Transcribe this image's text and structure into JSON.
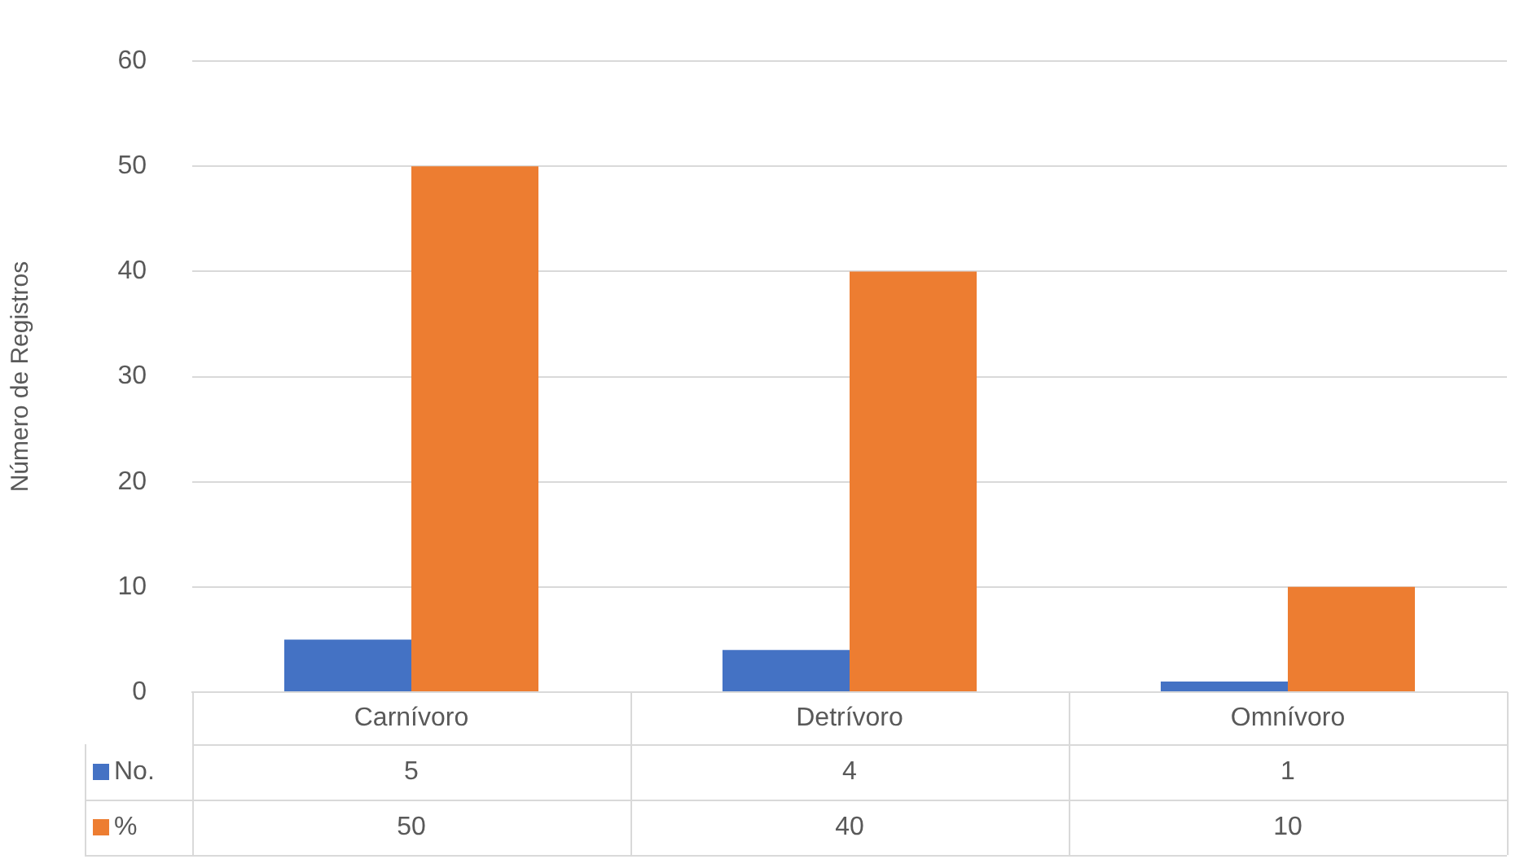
{
  "chart_data": {
    "type": "bar",
    "ylabel": "Número de Registros",
    "categories": [
      "Carnívoro",
      "Detrívoro",
      "Omnívoro"
    ],
    "series": [
      {
        "name": "No.",
        "color": "#4472c4",
        "values": [
          5,
          4,
          1
        ]
      },
      {
        "name": "%",
        "color": "#ed7d31",
        "values": [
          50,
          40,
          10
        ]
      }
    ],
    "ylim": [
      0,
      60
    ],
    "yticks": [
      0,
      10,
      20,
      30,
      40,
      50,
      60
    ],
    "grid": "y",
    "data_labels": true,
    "legend": "bottom left"
  }
}
